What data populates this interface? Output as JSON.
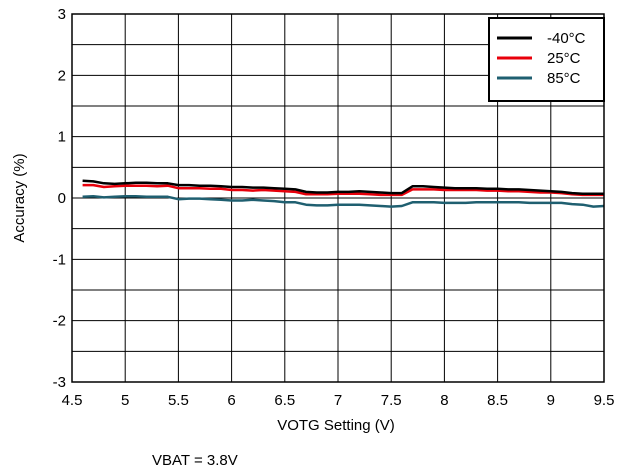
{
  "chart_data": {
    "type": "line",
    "title": "",
    "xlabel": "VOTG Setting (V)",
    "ylabel": "Accuracy (%)",
    "note": "VBAT = 3.8V",
    "xlim": [
      4.5,
      9.5
    ],
    "ylim": [
      -3,
      3
    ],
    "x_ticks": [
      "4.5",
      "5",
      "5.5",
      "6",
      "6.5",
      "7",
      "7.5",
      "8",
      "8.5",
      "9",
      "9.5"
    ],
    "y_ticks": [
      "3",
      "2",
      "1",
      "0",
      "-1",
      "-2",
      "-3"
    ],
    "grid": true,
    "legend_position": "top-right",
    "x": [
      4.6,
      4.7,
      4.8,
      4.9,
      5.0,
      5.1,
      5.2,
      5.3,
      5.4,
      5.5,
      5.6,
      5.7,
      5.8,
      5.9,
      6.0,
      6.1,
      6.2,
      6.3,
      6.4,
      6.5,
      6.6,
      6.7,
      6.8,
      6.9,
      7.0,
      7.1,
      7.2,
      7.3,
      7.4,
      7.5,
      7.6,
      7.7,
      7.8,
      7.9,
      8.0,
      8.1,
      8.2,
      8.3,
      8.4,
      8.5,
      8.6,
      8.7,
      8.8,
      8.9,
      9.0,
      9.1,
      9.2,
      9.3,
      9.4,
      9.5
    ],
    "series": [
      {
        "name": "-40°C",
        "color": "#000000",
        "values": [
          0.28,
          0.27,
          0.24,
          0.23,
          0.24,
          0.25,
          0.25,
          0.24,
          0.24,
          0.21,
          0.21,
          0.2,
          0.2,
          0.19,
          0.18,
          0.18,
          0.17,
          0.17,
          0.16,
          0.15,
          0.14,
          0.1,
          0.09,
          0.09,
          0.1,
          0.1,
          0.11,
          0.1,
          0.09,
          0.08,
          0.08,
          0.19,
          0.19,
          0.18,
          0.17,
          0.16,
          0.16,
          0.16,
          0.15,
          0.15,
          0.14,
          0.14,
          0.13,
          0.12,
          0.11,
          0.1,
          0.08,
          0.07,
          0.07,
          0.07
        ]
      },
      {
        "name": "25°C",
        "color": "#e8000b",
        "values": [
          0.21,
          0.21,
          0.18,
          0.19,
          0.2,
          0.2,
          0.2,
          0.19,
          0.2,
          0.16,
          0.16,
          0.16,
          0.15,
          0.15,
          0.13,
          0.13,
          0.12,
          0.13,
          0.12,
          0.11,
          0.1,
          0.06,
          0.06,
          0.06,
          0.07,
          0.07,
          0.07,
          0.06,
          0.05,
          0.05,
          0.05,
          0.14,
          0.14,
          0.14,
          0.13,
          0.13,
          0.13,
          0.13,
          0.12,
          0.12,
          0.11,
          0.11,
          0.1,
          0.09,
          0.09,
          0.08,
          0.06,
          0.05,
          0.05,
          0.05
        ]
      },
      {
        "name": "85°C",
        "color": "#1f5f70",
        "values": [
          0.02,
          0.03,
          0.01,
          0.02,
          0.03,
          0.03,
          0.02,
          0.02,
          0.02,
          -0.02,
          -0.01,
          -0.01,
          -0.02,
          -0.03,
          -0.04,
          -0.04,
          -0.03,
          -0.04,
          -0.05,
          -0.07,
          -0.07,
          -0.11,
          -0.12,
          -0.12,
          -0.11,
          -0.11,
          -0.11,
          -0.12,
          -0.13,
          -0.14,
          -0.13,
          -0.07,
          -0.07,
          -0.07,
          -0.08,
          -0.08,
          -0.08,
          -0.07,
          -0.07,
          -0.07,
          -0.07,
          -0.07,
          -0.08,
          -0.08,
          -0.08,
          -0.08,
          -0.1,
          -0.11,
          -0.14,
          -0.13
        ]
      }
    ]
  }
}
